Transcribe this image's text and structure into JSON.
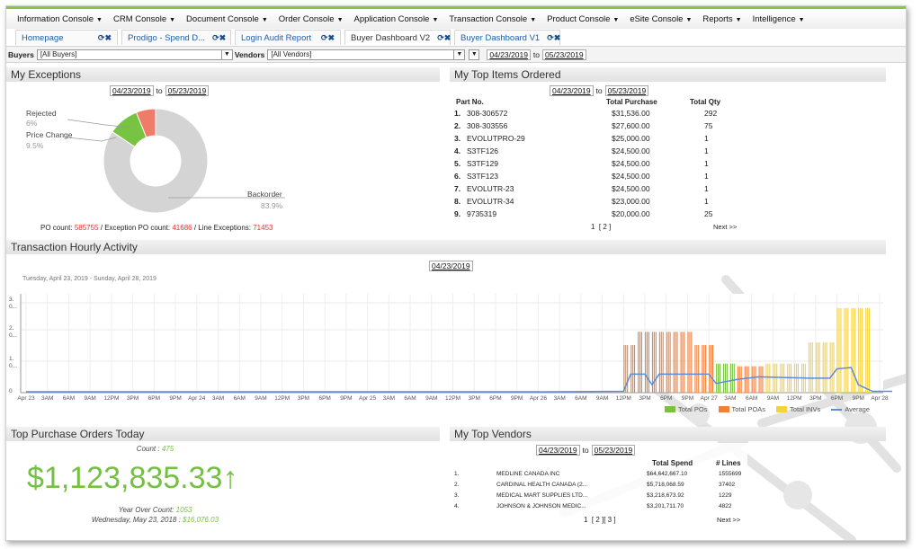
{
  "menu": [
    "Information Console",
    "CRM Console",
    "Document Console",
    "Order Console",
    "Application Console",
    "Transaction Console",
    "Product Console",
    "eSite Console",
    "Reports",
    "Intelligence"
  ],
  "tabs": [
    {
      "label": "Homepage",
      "active": false
    },
    {
      "label": "Prodigo - Spend D...",
      "active": false
    },
    {
      "label": "Login Audit Report",
      "active": false
    },
    {
      "label": "Buyer Dashboard V2",
      "active": true
    },
    {
      "label": "Buyer Dashboard V1",
      "active": false
    }
  ],
  "filters": {
    "buyers_label": "Buyers",
    "buyers_value": "[All Buyers]",
    "vendors_label": "Vendors",
    "vendors_value": "[All Vendors]",
    "from": "04/23/2019",
    "to_word": "to",
    "to": "05/23/2019"
  },
  "exceptions": {
    "title": "My Exceptions",
    "from": "04/23/2019",
    "to_word": "to",
    "to": "05/23/2019",
    "slices": [
      {
        "label": "Rejected",
        "pct": "6%",
        "value": 6,
        "color": "#f07b68"
      },
      {
        "label": "Price Change",
        "pct": "9.5%",
        "value": 9.5,
        "color": "#76c442"
      },
      {
        "label": "Backorder",
        "pct": "83.9%",
        "value": 83.9,
        "color": "#d4d4d4"
      }
    ],
    "po_label": "PO count:",
    "po_value": "585755",
    "exc_label": "/ Exception PO count:",
    "exc_value": "41686",
    "line_label": "/ Line Exceptions:",
    "line_value": "71453"
  },
  "top_items": {
    "title": "My Top Items Ordered",
    "from": "04/23/2019",
    "to_word": "to",
    "to": "05/23/2019",
    "headers": {
      "part": "Part No.",
      "purchase": "Total Purchase",
      "qty": "Total Qty"
    },
    "rows": [
      {
        "n": "1.",
        "part": "308-306572",
        "purchase": "$31,536.00",
        "qty": "292"
      },
      {
        "n": "2.",
        "part": "308-303556",
        "purchase": "$27,600.00",
        "qty": "75"
      },
      {
        "n": "3.",
        "part": "EVOLUTPRO-29",
        "purchase": "$25,000.00",
        "qty": "1"
      },
      {
        "n": "4.",
        "part": "S3TF126",
        "purchase": "$24,500.00",
        "qty": "1"
      },
      {
        "n": "5.",
        "part": "S3TF129",
        "purchase": "$24,500.00",
        "qty": "1"
      },
      {
        "n": "6.",
        "part": "S3TF123",
        "purchase": "$24,500.00",
        "qty": "1"
      },
      {
        "n": "7.",
        "part": "EVOLUTR-23",
        "purchase": "$24,500.00",
        "qty": "1"
      },
      {
        "n": "8.",
        "part": "EVOLUTR-34",
        "purchase": "$23,000.00",
        "qty": "1"
      },
      {
        "n": "9.",
        "part": "9735319",
        "purchase": "$20,000.00",
        "qty": "25"
      }
    ],
    "pager": "1  [ 2 ]",
    "next": "Next >>"
  },
  "hourly": {
    "title": "Transaction Hourly Activity",
    "date": "04/23/2019",
    "subtitle": "Tuesday, April 23, 2019 - Sunday, April 28, 2019",
    "y_ticks": [
      "3.\n0...",
      "2.\n0...",
      "1.\n0...",
      "0"
    ],
    "x_ticks": [
      "Apr 23",
      "3AM",
      "6AM",
      "9AM",
      "12PM",
      "3PM",
      "6PM",
      "9PM",
      "Apr 24",
      "3AM",
      "6AM",
      "9AM",
      "12PM",
      "3PM",
      "6PM",
      "9PM",
      "Apr 25",
      "3AM",
      "6AM",
      "9AM",
      "12PM",
      "3PM",
      "6PM",
      "9PM",
      "Apr 26",
      "3AM",
      "6AM",
      "9AM",
      "12PM",
      "3PM",
      "6PM",
      "9PM",
      "Apr 27",
      "3AM",
      "6AM",
      "9AM",
      "12PM",
      "3PM",
      "6PM",
      "9PM",
      "Apr 28"
    ],
    "legend": [
      {
        "label": "Total POs",
        "color": "#7ac143"
      },
      {
        "label": "Total POAs",
        "color": "#f07f3c"
      },
      {
        "label": "Total INVs",
        "color": "#f7d23e"
      },
      {
        "label": "Average",
        "color": "#5b8bd9"
      }
    ]
  },
  "top_po": {
    "title": "Top Purchase Orders Today",
    "count_label": "Count :",
    "count_value": "475",
    "amount": "$1,123,835.33",
    "arrow": "↑",
    "yoy_label": "Year Over Count:",
    "yoy_value": "1053",
    "date_label": "Wednesday, May 23, 2018 :",
    "date_value": "$16,076.03"
  },
  "top_vendors": {
    "title": "My Top Vendors",
    "from": "04/23/2019",
    "to_word": "to",
    "to": "05/23/2019",
    "headers": {
      "spend": "Total Spend",
      "lines": "# Lines"
    },
    "rows": [
      {
        "n": "1.",
        "name": "MEDLINE CANADA INC",
        "spend": "$64,642,667.10",
        "lines": "1555699"
      },
      {
        "n": "2.",
        "name": "CARDINAL HEALTH CANADA (2...",
        "spend": "$5,718,068.59",
        "lines": "37402"
      },
      {
        "n": "3.",
        "name": "MEDICAL MART SUPPLIES LTD...",
        "spend": "$3,218,673.92",
        "lines": "1229"
      },
      {
        "n": "4.",
        "name": "JOHNSON & JOHNSON MEDIC...",
        "spend": "$3,201,711.70",
        "lines": "4822"
      }
    ],
    "pager": "1  [ 2 ][ 3 ]",
    "next": "Next >>"
  }
}
